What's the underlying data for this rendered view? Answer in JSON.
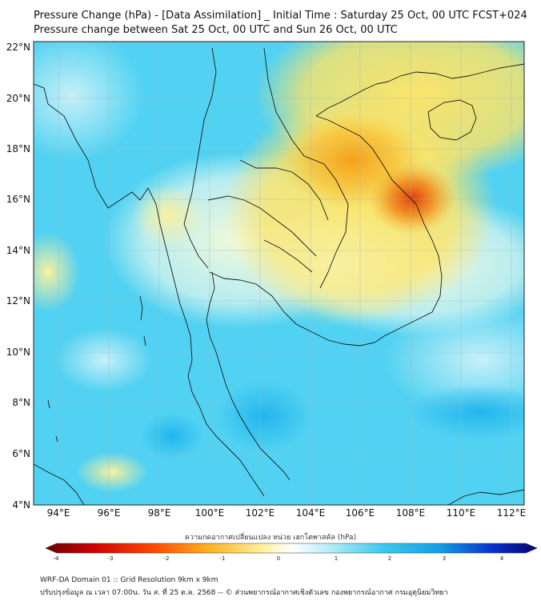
{
  "header": {
    "title_line1": "Pressure Change (hPa) - [Data Assimilation] _ Initial Time : Saturday 25 Oct, 00 UTC FCST+024",
    "title_line2": "Pressure change between Sat 25 Oct, 00 UTC and Sun 26 Oct, 00 UTC"
  },
  "map": {
    "lat_labels": [
      "22°N",
      "20°N",
      "18°N",
      "16°N",
      "14°N",
      "12°N",
      "10°N",
      "8°N",
      "6°N",
      "4°N"
    ],
    "lon_labels": [
      "94°E",
      "96°E",
      "98°E",
      "100°E",
      "102°E",
      "104°E",
      "106°E",
      "108°E",
      "110°E",
      "112°E"
    ],
    "lat_range": [
      4,
      22
    ],
    "lon_range": [
      93,
      112.5
    ],
    "colors": {
      "background_field": "#4fd0f0",
      "light_field": "#d8f6fb",
      "positive_yellow": "#fbe86a",
      "positive_orange": "#f6a71e",
      "peak_red": "#e84a10",
      "deep_blue": "#18b8f0",
      "border": "#1a1a1a"
    }
  },
  "colorbar": {
    "title": "ความกดอากาศเปลี่ยนแปลง หน่วย เฮกโตพาสคัล (hPa)",
    "ticks": [
      "-4",
      "-3",
      "-2",
      "-1",
      "0",
      "1",
      "2",
      "3",
      "4"
    ],
    "range": [
      -4,
      4
    ]
  },
  "footer": {
    "line1": "WRF-DA Domain 01 :: Grid Resolution 9km x 9km",
    "line2": "ปรับปรุงข้อมูล ณ เวลา 07:00น. วัน ส. ที่ 25 ต.ค. 2568 -- © ส่วนพยากรณ์อากาศเชิงตัวเลข กองพยากรณ์อากาศ กรมอุตุนิยมวิทยา"
  }
}
